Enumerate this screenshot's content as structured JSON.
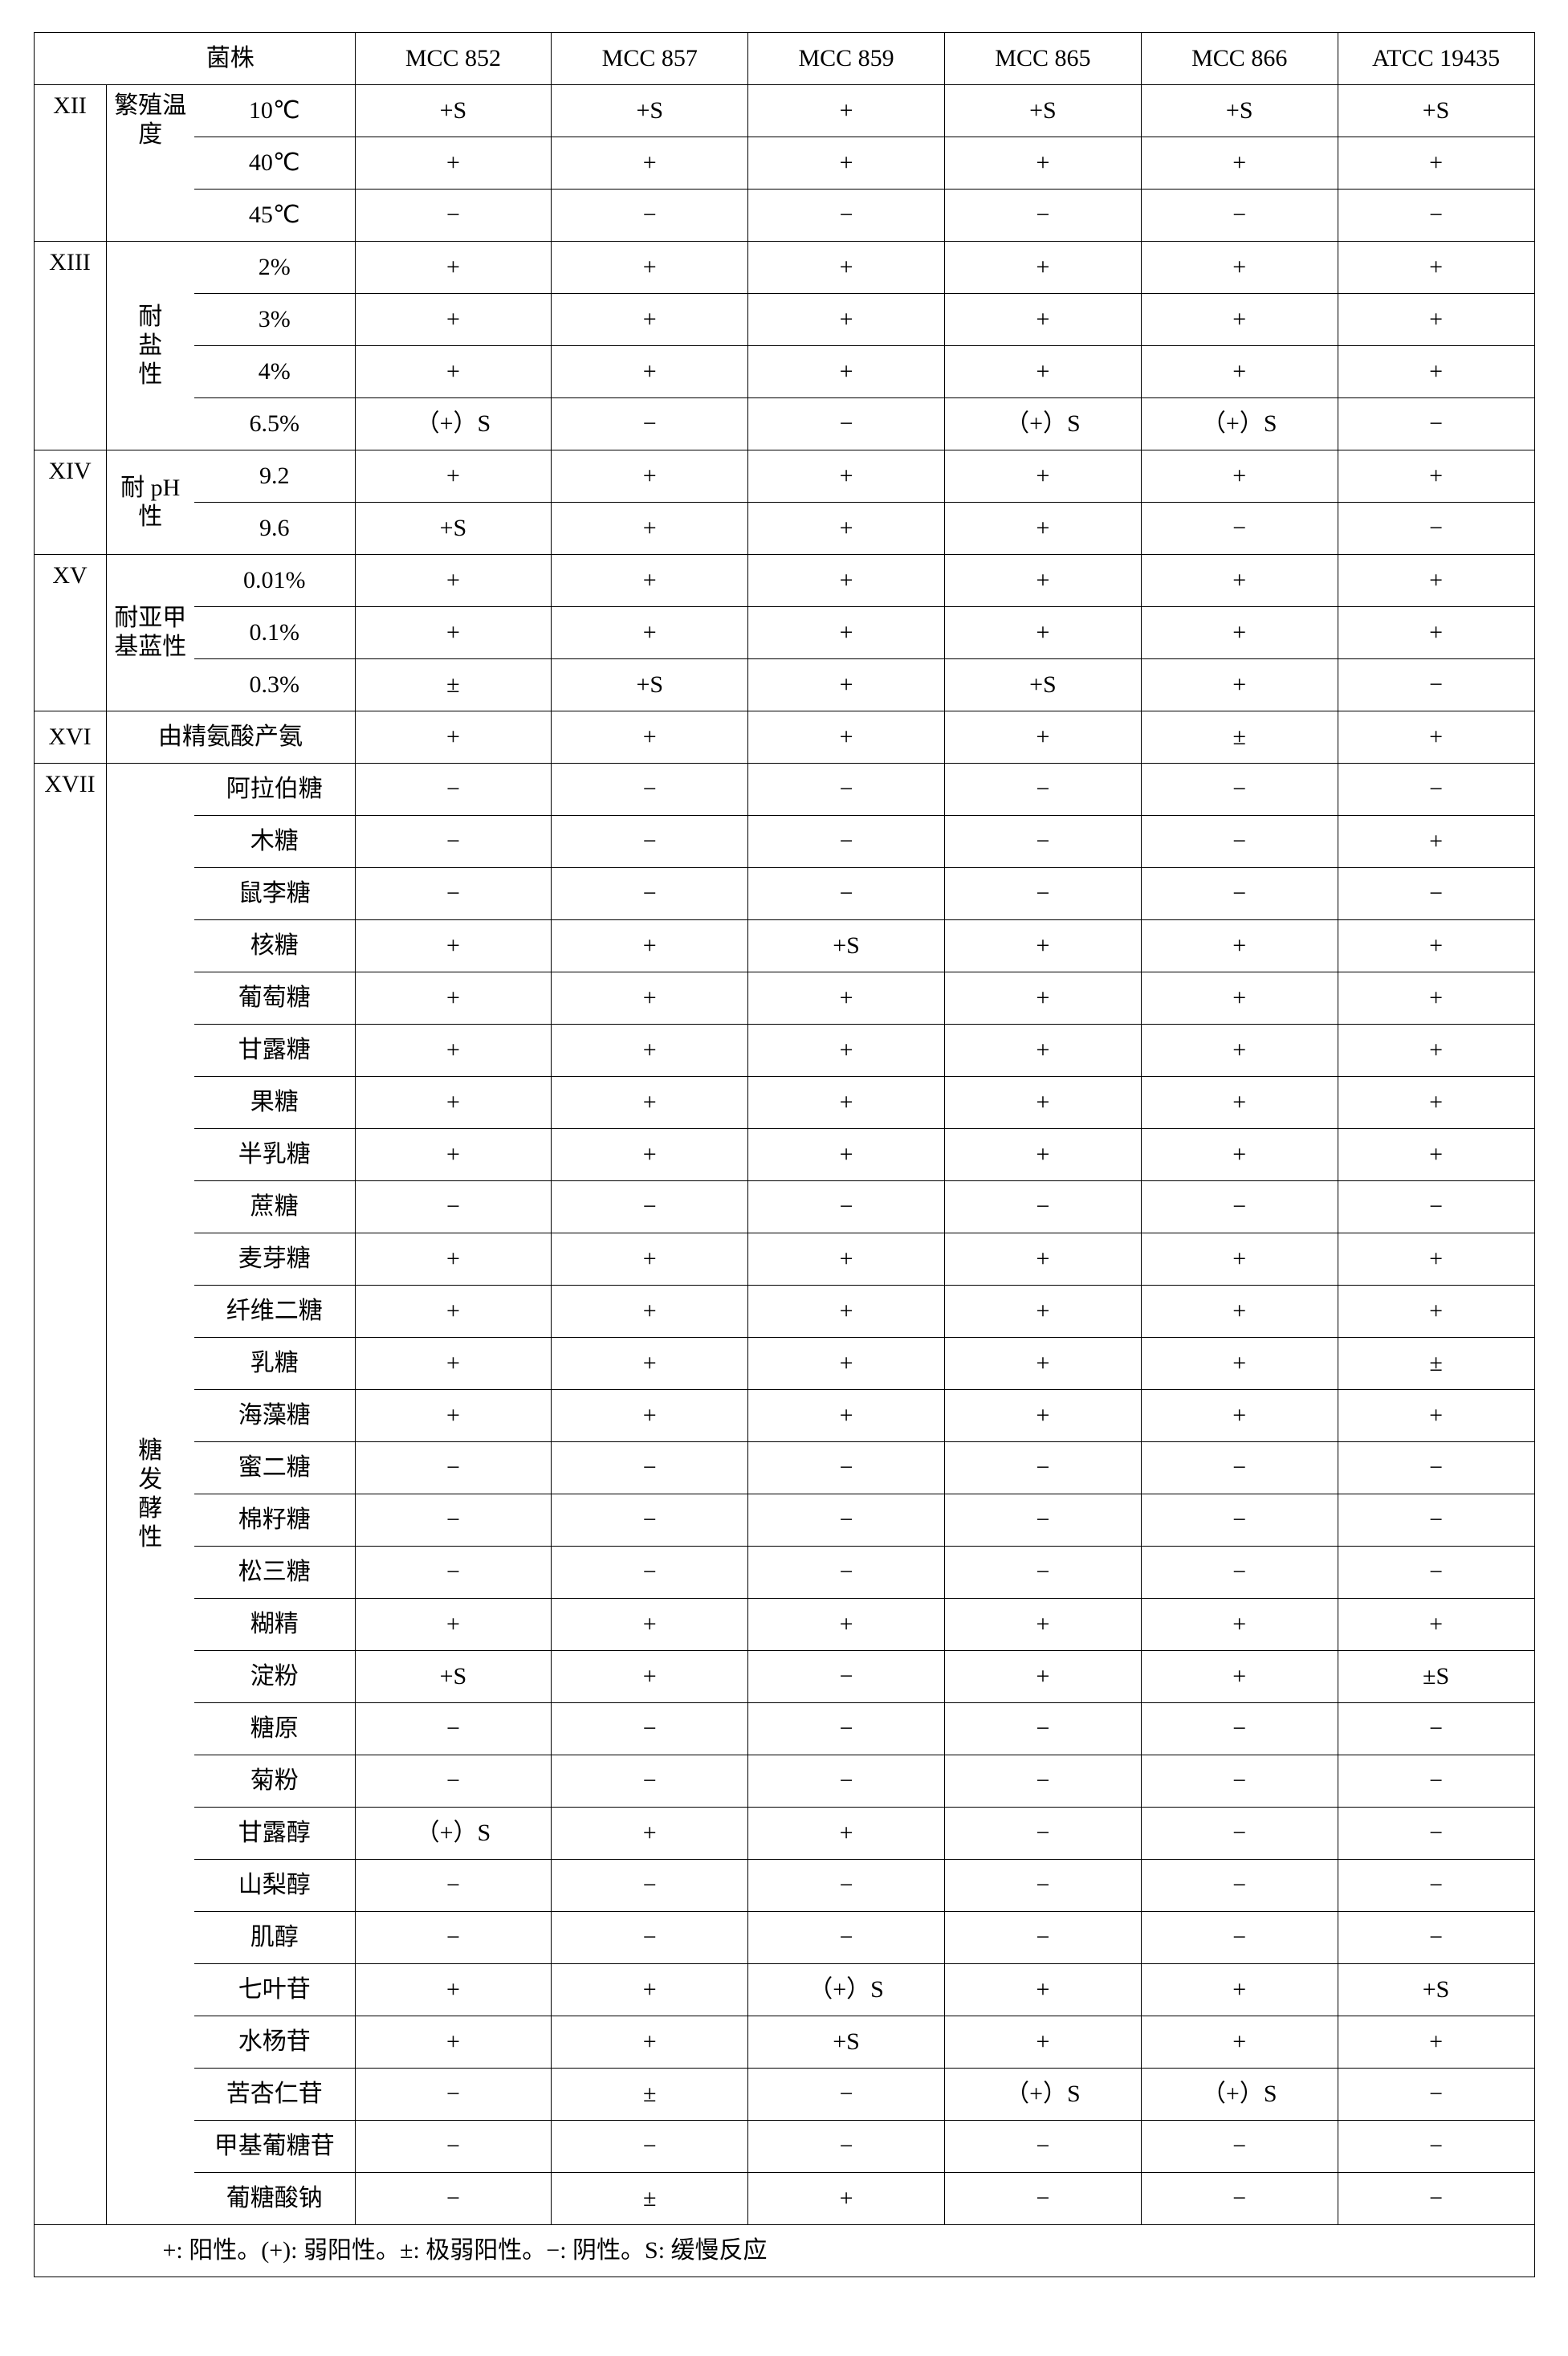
{
  "header": {
    "strain_label": "菌株",
    "strains": [
      "MCC 852",
      "MCC 857",
      "MCC 859",
      "MCC 865",
      "MCC 866",
      "ATCC 19435"
    ]
  },
  "sections": {
    "XII": {
      "roman": "XII",
      "cat": "繁殖温度"
    },
    "XIII": {
      "roman": "XIII",
      "cat_lines": [
        "耐",
        "盐",
        "性"
      ]
    },
    "XIV": {
      "roman": "XIV",
      "cat": "耐 pH 性",
      "cat_l1": "耐 pH",
      "cat_l2": "性"
    },
    "XV": {
      "roman": "XV",
      "cat": "耐亚甲基蓝性",
      "cat_l1": "耐亚甲",
      "cat_l2": "基蓝性"
    },
    "XVI": {
      "roman": "XVI",
      "cat": "由精氨酸产氨"
    },
    "XVII": {
      "roman": "XVII",
      "cat_lines": [
        "糖",
        "发",
        "酵",
        "性"
      ]
    }
  },
  "rows": {
    "r1": {
      "cond": "10℃",
      "v": [
        "+S",
        "+S",
        "+",
        "+S",
        "+S",
        "+S"
      ]
    },
    "r2": {
      "cond": "40℃",
      "v": [
        "+",
        "+",
        "+",
        "+",
        "+",
        "+"
      ]
    },
    "r3": {
      "cond": "45℃",
      "v": [
        "−",
        "−",
        "−",
        "−",
        "−",
        "−"
      ]
    },
    "r4": {
      "cond": "2%",
      "v": [
        "+",
        "+",
        "+",
        "+",
        "+",
        "+"
      ]
    },
    "r5": {
      "cond": "3%",
      "v": [
        "+",
        "+",
        "+",
        "+",
        "+",
        "+"
      ]
    },
    "r6": {
      "cond": "4%",
      "v": [
        "+",
        "+",
        "+",
        "+",
        "+",
        "+"
      ]
    },
    "r7": {
      "cond": "6.5%",
      "v": [
        "（+）S",
        "−",
        "−",
        "（+）S",
        "（+）S",
        "−"
      ]
    },
    "r8": {
      "cond": "9.2",
      "v": [
        "+",
        "+",
        "+",
        "+",
        "+",
        "+"
      ]
    },
    "r9": {
      "cond": "9.6",
      "v": [
        "+S",
        "+",
        "+",
        "+",
        "−",
        "−"
      ]
    },
    "r10": {
      "cond": "0.01%",
      "v": [
        "+",
        "+",
        "+",
        "+",
        "+",
        "+"
      ]
    },
    "r11": {
      "cond": "0.1%",
      "v": [
        "+",
        "+",
        "+",
        "+",
        "+",
        "+"
      ]
    },
    "r12": {
      "cond": "0.3%",
      "v": [
        "±",
        "+S",
        "+",
        "+S",
        "+",
        "−"
      ]
    },
    "r13": {
      "cond": "",
      "v": [
        "+",
        "+",
        "+",
        "+",
        "±",
        "+"
      ]
    },
    "r14": {
      "cond": "阿拉伯糖",
      "v": [
        "−",
        "−",
        "−",
        "−",
        "−",
        "−"
      ]
    },
    "r15": {
      "cond": "木糖",
      "v": [
        "−",
        "−",
        "−",
        "−",
        "−",
        "+"
      ]
    },
    "r16": {
      "cond": "鼠李糖",
      "v": [
        "−",
        "−",
        "−",
        "−",
        "−",
        "−"
      ]
    },
    "r17": {
      "cond": "核糖",
      "v": [
        "+",
        "+",
        "+S",
        "+",
        "+",
        "+"
      ]
    },
    "r18": {
      "cond": "葡萄糖",
      "v": [
        "+",
        "+",
        "+",
        "+",
        "+",
        "+"
      ]
    },
    "r19": {
      "cond": "甘露糖",
      "v": [
        "+",
        "+",
        "+",
        "+",
        "+",
        "+"
      ]
    },
    "r20": {
      "cond": "果糖",
      "v": [
        "+",
        "+",
        "+",
        "+",
        "+",
        "+"
      ]
    },
    "r21": {
      "cond": "半乳糖",
      "v": [
        "+",
        "+",
        "+",
        "+",
        "+",
        "+"
      ]
    },
    "r22": {
      "cond": "蔗糖",
      "v": [
        "−",
        "−",
        "−",
        "−",
        "−",
        "−"
      ]
    },
    "r23": {
      "cond": "麦芽糖",
      "v": [
        "+",
        "+",
        "+",
        "+",
        "+",
        "+"
      ]
    },
    "r24": {
      "cond": "纤维二糖",
      "v": [
        "+",
        "+",
        "+",
        "+",
        "+",
        "+"
      ]
    },
    "r25": {
      "cond": "乳糖",
      "v": [
        "+",
        "+",
        "+",
        "+",
        "+",
        "±"
      ]
    },
    "r26": {
      "cond": "海藻糖",
      "v": [
        "+",
        "+",
        "+",
        "+",
        "+",
        "+"
      ]
    },
    "r27": {
      "cond": "蜜二糖",
      "v": [
        "−",
        "−",
        "−",
        "−",
        "−",
        "−"
      ]
    },
    "r28": {
      "cond": "棉籽糖",
      "v": [
        "−",
        "−",
        "−",
        "−",
        "−",
        "−"
      ]
    },
    "r29": {
      "cond": "松三糖",
      "v": [
        "−",
        "−",
        "−",
        "−",
        "−",
        "−"
      ]
    },
    "r30": {
      "cond": "糊精",
      "v": [
        "+",
        "+",
        "+",
        "+",
        "+",
        "+"
      ]
    },
    "r31": {
      "cond": "淀粉",
      "v": [
        "+S",
        "+",
        "−",
        "+",
        "+",
        "±S"
      ]
    },
    "r32": {
      "cond": "糖原",
      "v": [
        "−",
        "−",
        "−",
        "−",
        "−",
        "−"
      ]
    },
    "r33": {
      "cond": "菊粉",
      "v": [
        "−",
        "−",
        "−",
        "−",
        "−",
        "−"
      ]
    },
    "r34": {
      "cond": "甘露醇",
      "v": [
        "（+）S",
        "+",
        "+",
        "−",
        "−",
        "−"
      ]
    },
    "r35": {
      "cond": "山梨醇",
      "v": [
        "−",
        "−",
        "−",
        "−",
        "−",
        "−"
      ]
    },
    "r36": {
      "cond": "肌醇",
      "v": [
        "−",
        "−",
        "−",
        "−",
        "−",
        "−"
      ]
    },
    "r37": {
      "cond": "七叶苷",
      "v": [
        "+",
        "+",
        "（+）S",
        "+",
        "+",
        "+S"
      ]
    },
    "r38": {
      "cond": "水杨苷",
      "v": [
        "+",
        "+",
        "+S",
        "+",
        "+",
        "+"
      ]
    },
    "r39": {
      "cond": "苦杏仁苷",
      "v": [
        "−",
        "±",
        "−",
        "（+）S",
        "（+）S",
        "−"
      ]
    },
    "r40": {
      "cond": "甲基葡糖苷",
      "v": [
        "−",
        "−",
        "−",
        "−",
        "−",
        "−"
      ]
    },
    "r41": {
      "cond": "葡糖酸钠",
      "v": [
        "−",
        "±",
        "+",
        "−",
        "−",
        "−"
      ]
    }
  },
  "legend": "+:  阳性。(+):  弱阳性。±:  极弱阳性。−:  阴性。S:  缓慢反应"
}
